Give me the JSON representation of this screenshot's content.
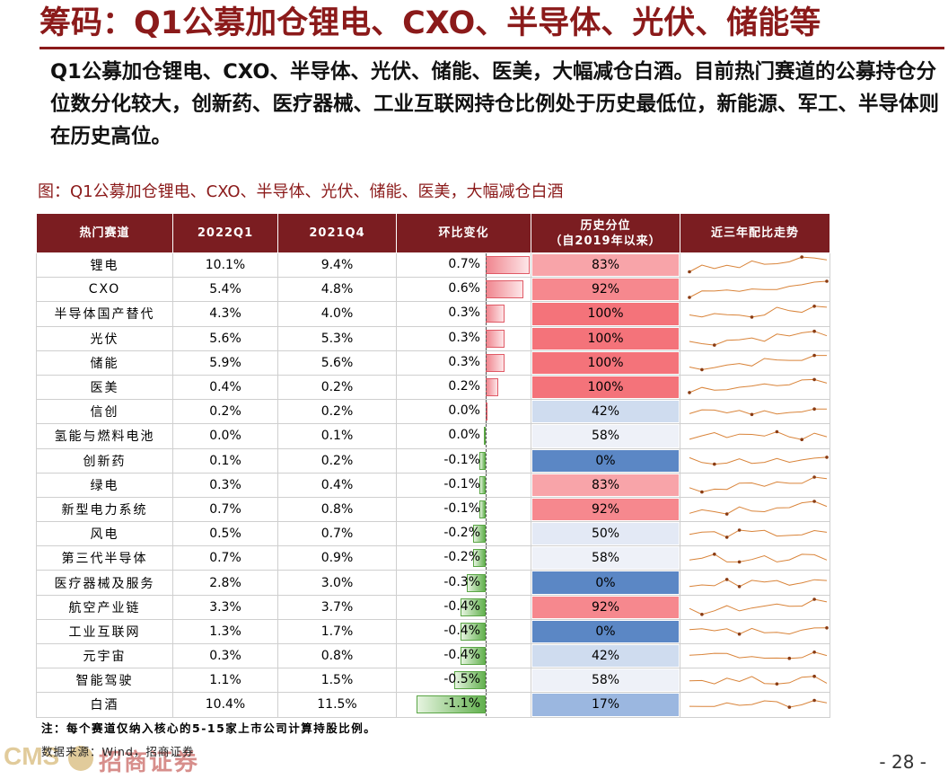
{
  "title": "筹码：Q1公募加仓锂电、CXO、半导体、光伏、储能等",
  "summary": "Q1公募加仓锂电、CXO、半导体、光伏、储能、医美，大幅减仓白酒。目前热门赛道的公募持仓分位数分化较大，创新药、医疗器械、工业互联网持仓比例处于历史最低位，新能源、军工、半导体则在历史高位。",
  "figure_caption": "图：Q1公募加仓锂电、CXO、半导体、光伏、储能、医美，大幅减仓白酒",
  "table": {
    "headers": {
      "sector": "热门赛道",
      "q1": "2022Q1",
      "q4": "2021Q4",
      "change": "环比变化",
      "percentile_line1": "历史分位",
      "percentile_line2": "（自2019年以来）",
      "trend": "近三年配比走势"
    },
    "rows": [
      {
        "name": "锂电",
        "q1": "10.1%",
        "q4": "9.4%",
        "change": "0.7%",
        "change_value": 0.7,
        "percentile": "83%",
        "pct_value": 83
      },
      {
        "name": "CXO",
        "q1": "5.4%",
        "q4": "4.8%",
        "change": "0.6%",
        "change_value": 0.6,
        "percentile": "92%",
        "pct_value": 92
      },
      {
        "name": "半导体国产替代",
        "q1": "4.3%",
        "q4": "4.0%",
        "change": "0.3%",
        "change_value": 0.3,
        "percentile": "100%",
        "pct_value": 100
      },
      {
        "name": "光伏",
        "q1": "5.6%",
        "q4": "5.3%",
        "change": "0.3%",
        "change_value": 0.3,
        "percentile": "100%",
        "pct_value": 100
      },
      {
        "name": "储能",
        "q1": "5.9%",
        "q4": "5.6%",
        "change": "0.3%",
        "change_value": 0.3,
        "percentile": "100%",
        "pct_value": 100
      },
      {
        "name": "医美",
        "q1": "0.4%",
        "q4": "0.2%",
        "change": "0.2%",
        "change_value": 0.2,
        "percentile": "100%",
        "pct_value": 100
      },
      {
        "name": "信创",
        "q1": "0.2%",
        "q4": "0.2%",
        "change": "0.0%",
        "change_value": 0.02,
        "percentile": "42%",
        "pct_value": 42
      },
      {
        "name": "氢能与燃料电池",
        "q1": "0.0%",
        "q4": "0.1%",
        "change": "0.0%",
        "change_value": -0.02,
        "percentile": "58%",
        "pct_value": 58
      },
      {
        "name": "创新药",
        "q1": "0.1%",
        "q4": "0.2%",
        "change": "-0.1%",
        "change_value": -0.1,
        "percentile": "0%",
        "pct_value": 0
      },
      {
        "name": "绿电",
        "q1": "0.3%",
        "q4": "0.4%",
        "change": "-0.1%",
        "change_value": -0.1,
        "percentile": "83%",
        "pct_value": 83
      },
      {
        "name": "新型电力系统",
        "q1": "0.7%",
        "q4": "0.8%",
        "change": "-0.1%",
        "change_value": -0.1,
        "percentile": "92%",
        "pct_value": 92
      },
      {
        "name": "风电",
        "q1": "0.5%",
        "q4": "0.7%",
        "change": "-0.2%",
        "change_value": -0.2,
        "percentile": "50%",
        "pct_value": 50
      },
      {
        "name": "第三代半导体",
        "q1": "0.7%",
        "q4": "0.9%",
        "change": "-0.2%",
        "change_value": -0.2,
        "percentile": "58%",
        "pct_value": 58
      },
      {
        "name": "医疗器械及服务",
        "q1": "2.8%",
        "q4": "3.0%",
        "change": "-0.3%",
        "change_value": -0.3,
        "percentile": "0%",
        "pct_value": 0
      },
      {
        "name": "航空产业链",
        "q1": "3.3%",
        "q4": "3.7%",
        "change": "-0.4%",
        "change_value": -0.4,
        "percentile": "92%",
        "pct_value": 92
      },
      {
        "name": "工业互联网",
        "q1": "1.3%",
        "q4": "1.7%",
        "change": "-0.4%",
        "change_value": -0.4,
        "percentile": "0%",
        "pct_value": 0
      },
      {
        "name": "元宇宙",
        "q1": "0.3%",
        "q4": "0.8%",
        "change": "-0.4%",
        "change_value": -0.4,
        "percentile": "42%",
        "pct_value": 42
      },
      {
        "name": "智能驾驶",
        "q1": "1.1%",
        "q4": "1.5%",
        "change": "-0.5%",
        "change_value": -0.5,
        "percentile": "58%",
        "pct_value": 58
      },
      {
        "name": "白酒",
        "q1": "10.4%",
        "q4": "11.5%",
        "change": "-1.1%",
        "change_value": -1.1,
        "percentile": "17%",
        "pct_value": 17
      }
    ]
  },
  "note": "注：每个赛道仅纳入核心的5-15家上市公司计算持股比例。",
  "source": "数据来源：Wind，招商证券",
  "logo": {
    "brand": "CMS",
    "name": "招商证券"
  },
  "page_number": "- 28 -",
  "colors": {
    "brand_dark_red": "#7b1d21",
    "title_red": "#8b1a1a",
    "positive_bar": "#f0868f",
    "negative_bar": "#63b14f",
    "high_pct": "#f4737a",
    "low_pct": "#5b87c5",
    "sparkline": "#d9843a"
  }
}
